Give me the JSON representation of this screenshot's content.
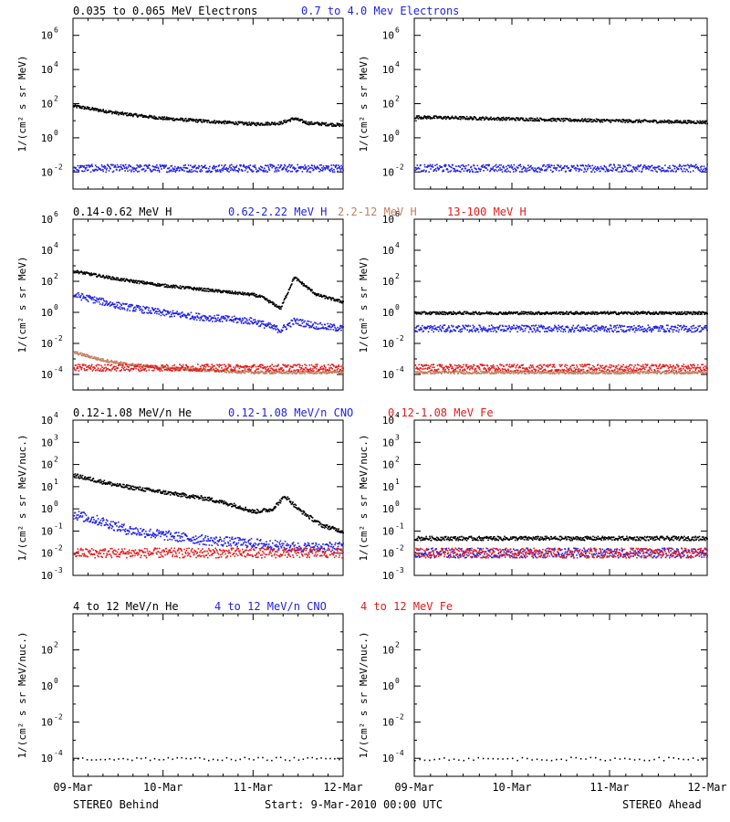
{
  "x_axis": {
    "tick_labels": [
      "09-Mar",
      "10-Mar",
      "11-Mar",
      "12-Mar"
    ],
    "range_days": [
      0,
      3
    ]
  },
  "footer": {
    "left": "STEREO Behind",
    "center": "Start:  9-Mar-2010 00:00 UTC",
    "right": "STEREO Ahead"
  },
  "colors": {
    "black": "#000000",
    "blue": "#1f1fe6",
    "tan": "#c08060",
    "red": "#e61a1a"
  },
  "chart_data": [
    {
      "type": "scatter",
      "row": 1,
      "column": "left",
      "title_group": "electrons",
      "titles": [
        {
          "text": "0.035 to 0.065 MeV Electrons",
          "color": "black"
        },
        {
          "text": "0.7 to 4.0 Mev Electrons",
          "color": "blue"
        }
      ],
      "ylabel": "1/(cm² s sr MeV)",
      "yscale": "log",
      "ylim_exp": [
        -3,
        7
      ],
      "yticks_exp": [
        -2,
        0,
        2,
        4,
        6
      ],
      "series": [
        {
          "color": "black",
          "x": [
            0,
            0.5,
            1,
            1.5,
            2,
            2.3,
            2.45,
            2.6,
            3
          ],
          "y": [
            80,
            30,
            15,
            10,
            7,
            8,
            15,
            8,
            6
          ]
        },
        {
          "color": "blue",
          "x": [
            0,
            1,
            2,
            3
          ],
          "y": [
            0.018,
            0.018,
            0.018,
            0.018
          ]
        }
      ]
    },
    {
      "type": "scatter",
      "row": 1,
      "column": "right",
      "titles": [],
      "ylabel": "1/(cm² s sr MeV)",
      "yscale": "log",
      "ylim_exp": [
        -3,
        7
      ],
      "yticks_exp": [
        -2,
        0,
        2,
        4,
        6
      ],
      "series": [
        {
          "color": "black",
          "x": [
            0,
            1,
            2,
            3
          ],
          "y": [
            18,
            14,
            11,
            9
          ]
        },
        {
          "color": "blue",
          "x": [
            0,
            1,
            2,
            3
          ],
          "y": [
            0.018,
            0.018,
            0.018,
            0.018
          ]
        }
      ]
    },
    {
      "type": "scatter",
      "row": 2,
      "column": "left",
      "titles": [
        {
          "text": "0.14-0.62 MeV H",
          "color": "black"
        },
        {
          "text": "0.62-2.22 MeV H",
          "color": "blue"
        },
        {
          "text": "2.2-12 MeV H",
          "color": "tan"
        },
        {
          "text": "13-100 MeV H",
          "color": "red"
        }
      ],
      "ylabel": "1/(cm² s sr MeV)",
      "yscale": "log",
      "ylim_exp": [
        -5,
        6
      ],
      "yticks_exp": [
        -4,
        -2,
        0,
        2,
        4,
        6
      ],
      "series": [
        {
          "color": "black",
          "x": [
            0,
            0.5,
            1,
            1.5,
            2,
            2.1,
            2.3,
            2.45,
            2.7,
            3
          ],
          "y": [
            500,
            150,
            60,
            30,
            15,
            10,
            2,
            200,
            15,
            5
          ]
        },
        {
          "color": "blue",
          "x": [
            0,
            0.5,
            1,
            1.5,
            2,
            2.3,
            2.45,
            2.7,
            3
          ],
          "y": [
            15,
            3,
            1,
            0.5,
            0.3,
            0.08,
            0.3,
            0.15,
            0.1
          ]
        },
        {
          "color": "tan",
          "x": [
            0,
            0.3,
            0.6,
            1,
            1.5,
            2,
            3
          ],
          "y": [
            0.003,
            0.001,
            0.0005,
            0.0003,
            0.0002,
            0.00015,
            0.00015
          ]
        },
        {
          "color": "red",
          "x": [
            0,
            1,
            2,
            3
          ],
          "y": [
            0.0003,
            0.0003,
            0.0003,
            0.0003
          ]
        }
      ]
    },
    {
      "type": "scatter",
      "row": 2,
      "column": "right",
      "titles": [],
      "ylabel": "1/(cm² s sr MeV)",
      "yscale": "log",
      "ylim_exp": [
        -5,
        6
      ],
      "yticks_exp": [
        -4,
        -2,
        0,
        2,
        4,
        6
      ],
      "series": [
        {
          "color": "black",
          "x": [
            0,
            1,
            2,
            3
          ],
          "y": [
            1,
            1,
            1,
            1
          ]
        },
        {
          "color": "blue",
          "x": [
            0,
            1,
            2,
            3
          ],
          "y": [
            0.1,
            0.1,
            0.1,
            0.1
          ]
        },
        {
          "color": "tan",
          "x": [
            0,
            1,
            2,
            3
          ],
          "y": [
            0.00015,
            0.00015,
            0.00015,
            0.00015
          ]
        },
        {
          "color": "red",
          "x": [
            0,
            1,
            2,
            3
          ],
          "y": [
            0.0003,
            0.0003,
            0.0003,
            0.0003
          ]
        }
      ]
    },
    {
      "type": "scatter",
      "row": 3,
      "column": "left",
      "titles": [
        {
          "text": "0.12-1.08 MeV/n He",
          "color": "black"
        },
        {
          "text": "0.12-1.08 MeV/n CNO",
          "color": "blue"
        },
        {
          "text": "0.12-1.08 MeV Fe",
          "color": "red"
        }
      ],
      "ylabel": "1/(cm² s sr MeV/nuc.)",
      "yscale": "log",
      "ylim_exp": [
        -3,
        4
      ],
      "yticks_exp": [
        -3,
        -2,
        -1,
        0,
        1,
        2,
        3,
        4
      ],
      "series": [
        {
          "color": "black",
          "x": [
            0,
            0.5,
            1,
            1.5,
            1.8,
            2,
            2.2,
            2.35,
            2.5,
            2.75,
            3
          ],
          "y": [
            35,
            12,
            6,
            3,
            1.5,
            0.8,
            1,
            4,
            1,
            0.2,
            0.1
          ]
        },
        {
          "color": "blue",
          "x": [
            0,
            0.3,
            0.6,
            1,
            1.5,
            2,
            2.5,
            3
          ],
          "y": [
            0.6,
            0.3,
            0.12,
            0.07,
            0.04,
            0.03,
            0.02,
            0.02
          ]
        },
        {
          "color": "red",
          "x": [
            0,
            1,
            2,
            3
          ],
          "y": [
            0.011,
            0.011,
            0.011,
            0.011
          ]
        }
      ]
    },
    {
      "type": "scatter",
      "row": 3,
      "column": "right",
      "titles": [],
      "ylabel": "1/(cm² s sr MeV/nuc.)",
      "yscale": "log",
      "ylim_exp": [
        -3,
        4
      ],
      "yticks_exp": [
        -3,
        -2,
        -1,
        0,
        1,
        2,
        3,
        4
      ],
      "series": [
        {
          "color": "black",
          "x": [
            0,
            1,
            2,
            3
          ],
          "y": [
            0.05,
            0.05,
            0.05,
            0.05
          ]
        },
        {
          "color": "blue",
          "x": [
            0,
            1,
            2,
            3
          ],
          "y": [
            0.011,
            0.011,
            0.011,
            0.011
          ]
        },
        {
          "color": "red",
          "x": [
            0,
            1,
            2,
            3
          ],
          "y": [
            0.011,
            0.011,
            0.011,
            0.011
          ]
        }
      ]
    },
    {
      "type": "scatter",
      "row": 4,
      "column": "left",
      "titles": [
        {
          "text": "4 to 12 MeV/n He",
          "color": "black"
        },
        {
          "text": "4 to 12 MeV/n CNO",
          "color": "blue"
        },
        {
          "text": "4 to 12 MeV Fe",
          "color": "red"
        }
      ],
      "ylabel": "1/(cm² s sr MeV/nuc.)",
      "yscale": "log",
      "ylim_exp": [
        -5,
        4
      ],
      "yticks_exp": [
        -4,
        -2,
        0,
        2
      ],
      "series": [
        {
          "color": "black",
          "x": [
            0,
            1,
            2,
            3
          ],
          "y": [
            0.0001,
            0.0001,
            0.0001,
            0.0001
          ]
        }
      ]
    },
    {
      "type": "scatter",
      "row": 4,
      "column": "right",
      "titles": [],
      "ylabel": "1/(cm² s sr MeV/nuc.)",
      "yscale": "log",
      "ylim_exp": [
        -5,
        4
      ],
      "yticks_exp": [
        -4,
        -2,
        0,
        2
      ],
      "series": [
        {
          "color": "black",
          "x": [
            0,
            1,
            2,
            3
          ],
          "y": [
            0.0001,
            0.0001,
            0.0001,
            0.0001
          ]
        }
      ]
    }
  ]
}
